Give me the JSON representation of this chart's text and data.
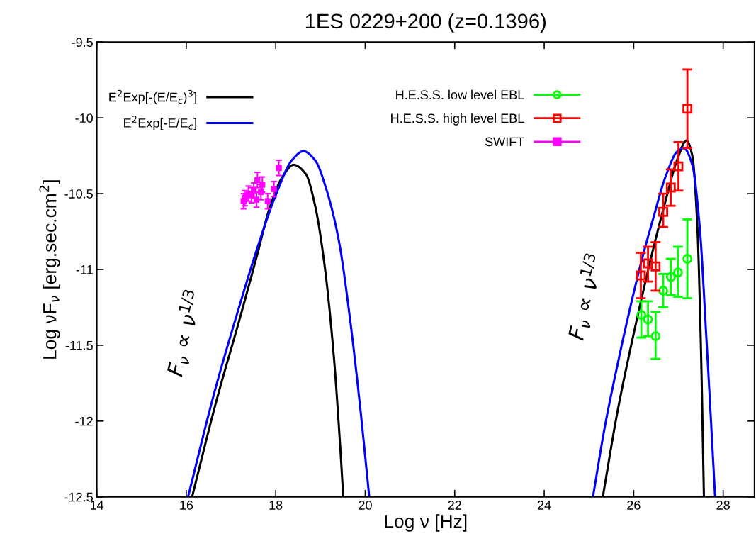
{
  "chart_data": {
    "type": "line",
    "title": "1ES 0229+200 (z=0.1396)",
    "xlabel": "Log ν [Hz]",
    "ylabel": "Log νF$_{ν}$ [erg.sec.cm$^{2}$]",
    "xlim": [
      14,
      28.7
    ],
    "ylim": [
      -12.5,
      -9.5
    ],
    "xticks": [
      14,
      16,
      18,
      20,
      22,
      24,
      26,
      28
    ],
    "yticks": [
      -9.5,
      -10,
      -10.5,
      -11,
      -11.5,
      -12,
      -12.5
    ],
    "grid": false,
    "legend": "top",
    "annotations": [
      "F$_{ν}$ ∝ ν$^{1/3}$",
      "F$_{ν}$ ∝ ν$^{1/3}$"
    ],
    "series": [
      {
        "name": "E$^{2}$Exp[-(E/E$_{c}$)$^{3}$]",
        "color": "#000000",
        "marker": "none",
        "x": [
          16.13,
          16.68,
          17.2,
          17.57,
          17.88,
          18.15,
          18.4,
          18.67,
          18.88,
          19.09,
          19.3,
          19.43,
          19.51,
          null,
          25.31,
          25.63,
          25.9,
          26.17,
          26.44,
          26.71,
          26.98,
          27.18,
          27.31,
          27.42,
          27.5,
          27.57
        ],
        "values": [
          -12.5,
          -11.86,
          -11.32,
          -10.92,
          -10.58,
          -10.39,
          -10.31,
          -10.37,
          -10.58,
          -10.97,
          -11.58,
          -12.12,
          -12.5,
          null,
          -12.5,
          -11.95,
          -11.56,
          -11.2,
          -10.86,
          -10.55,
          -10.27,
          -10.15,
          -10.25,
          -10.7,
          -11.48,
          -12.5
        ]
      },
      {
        "name": "E$^{2}$Exp[-E/E$_{c}$]",
        "color": "#0000ff",
        "marker": "none",
        "x": [
          16.04,
          16.63,
          17.2,
          17.62,
          18.04,
          18.36,
          18.62,
          18.88,
          19.14,
          19.41,
          19.67,
          19.88,
          20.09,
          null,
          25.09,
          25.36,
          25.63,
          25.9,
          26.17,
          26.44,
          26.71,
          26.98,
          27.12,
          27.31,
          27.47,
          27.63,
          27.82
        ],
        "values": [
          -12.5,
          -11.81,
          -11.23,
          -10.83,
          -10.48,
          -10.28,
          -10.22,
          -10.28,
          -10.48,
          -10.81,
          -11.35,
          -11.89,
          -12.5,
          null,
          -12.5,
          -12.03,
          -11.64,
          -11.28,
          -10.95,
          -10.66,
          -10.39,
          -10.22,
          -10.2,
          -10.31,
          -10.7,
          -11.48,
          -12.5
        ]
      },
      {
        "name": "H.E.S.S. low level EBL",
        "type": "scatter",
        "color": "#00ff00",
        "marker": "circle",
        "x": [
          26.17,
          26.32,
          26.49,
          26.66,
          26.83,
          26.99,
          27.2
        ],
        "values": [
          -11.3,
          -11.33,
          -11.44,
          -11.14,
          -11.05,
          -11.02,
          -10.93
        ],
        "errors": [
          [
            -11.45,
            -11.21
          ],
          [
            -11.44,
            -11.21
          ],
          [
            -11.59,
            -11.28
          ],
          [
            -11.25,
            -11.03
          ],
          [
            -11.17,
            -10.93
          ],
          [
            -11.18,
            -10.85
          ],
          [
            -11.19,
            -10.67
          ]
        ]
      },
      {
        "name": "H.E.S.S. high level EBL",
        "type": "scatter",
        "color": "#ff0000",
        "marker": "square",
        "x": [
          26.16,
          26.32,
          26.49,
          26.66,
          26.83,
          27.0,
          27.2
        ],
        "values": [
          -11.04,
          -10.96,
          -10.98,
          -10.62,
          -10.46,
          -10.32,
          -9.94
        ],
        "errors": [
          [
            -11.19,
            -10.89
          ],
          [
            -11.08,
            -10.85
          ],
          [
            -11.14,
            -10.82
          ],
          [
            -10.72,
            -10.5
          ],
          [
            -10.58,
            -10.34
          ],
          [
            -10.48,
            -10.16
          ],
          [
            -10.2,
            -9.68
          ]
        ]
      },
      {
        "name": "SWIFT",
        "type": "scatter",
        "color": "#ff00ff",
        "marker": "square",
        "x": [
          17.28,
          17.31,
          17.39,
          17.46,
          17.51,
          17.57,
          17.59,
          17.67,
          17.7,
          17.82,
          17.96,
          18.07
        ],
        "values": [
          -10.55,
          -10.53,
          -10.5,
          -10.51,
          -10.48,
          -10.54,
          -10.41,
          -10.49,
          -10.44,
          -10.55,
          -10.47,
          -10.33
        ],
        "errors": [
          0.05,
          0.05,
          0.05,
          0.05,
          0.05,
          0.05,
          0.05,
          0.05,
          0.05,
          0.05,
          0.05,
          0.05
        ],
        "xerrors": [
          0.04,
          0.04,
          0.04,
          0.04,
          0.04,
          0.04,
          0.04,
          0.04,
          0.04,
          0.04,
          0.04,
          0.04
        ]
      }
    ]
  }
}
